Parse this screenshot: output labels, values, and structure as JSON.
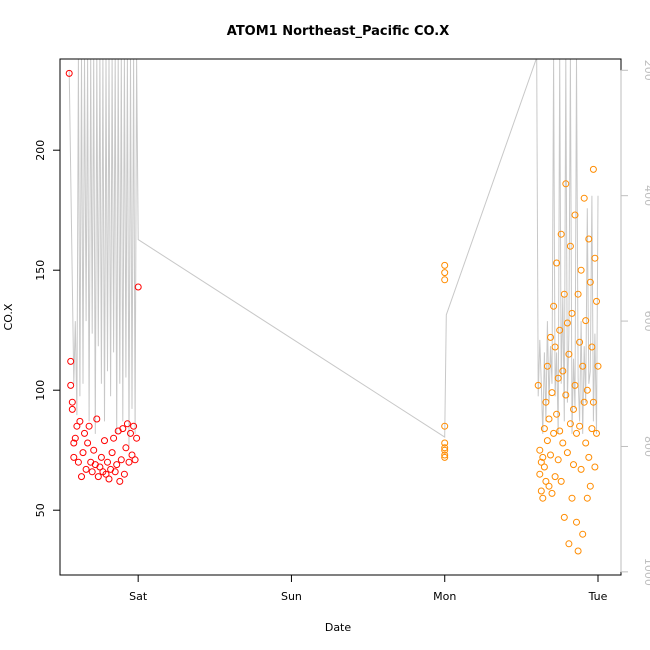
{
  "chart_data": {
    "type": "scatter",
    "title": "ATOM1 Northeast_Pacific CO.X",
    "xlabel": "Date",
    "ylabel": "CO.X",
    "x_tick_labels": [
      "Sat",
      "Sun",
      "Mon",
      "Tue"
    ],
    "x_ticks_day": [
      1,
      2,
      3,
      4
    ],
    "xlim_day": [
      0.49,
      4.15
    ],
    "y_ticks": [
      50,
      100,
      150,
      200
    ],
    "ylim": [
      23,
      238
    ],
    "y2_ticks": [
      200,
      400,
      600,
      800,
      1000
    ],
    "y2lim": [
      1005,
      182
    ],
    "y2_reversed": true,
    "grid": false,
    "colors": {
      "early": "#ff0000",
      "late": "#ff8c00",
      "line": "#c8c8c8"
    },
    "series": [
      {
        "role": "points-early",
        "color": "#ff0000",
        "x_day": [
          0.55,
          0.56,
          0.56,
          0.57,
          0.57,
          0.58,
          0.58,
          0.59,
          0.6,
          0.61,
          0.62,
          0.63,
          0.64,
          0.65,
          0.66,
          0.67,
          0.68,
          0.69,
          0.7,
          0.71,
          0.72,
          0.73,
          0.74,
          0.75,
          0.76,
          0.77,
          0.78,
          0.79,
          0.8,
          0.81,
          0.82,
          0.83,
          0.84,
          0.85,
          0.86,
          0.87,
          0.88,
          0.89,
          0.9,
          0.91,
          0.92,
          0.93,
          0.94,
          0.95,
          0.96,
          0.97,
          0.98,
          0.99,
          1.0
        ],
        "y": [
          232,
          112,
          102,
          95,
          92,
          78,
          72,
          80,
          85,
          70,
          87,
          64,
          74,
          82,
          67,
          78,
          85,
          70,
          66,
          75,
          69,
          88,
          64,
          68,
          72,
          66,
          79,
          65,
          70,
          63,
          67,
          74,
          80,
          66,
          69,
          83,
          62,
          71,
          84,
          65,
          76,
          86,
          70,
          82,
          73,
          85,
          71,
          80,
          143
        ]
      },
      {
        "role": "points-mid",
        "color": "#ff8c00",
        "x_day": [
          3.0,
          3.0,
          3.0,
          3.0,
          3.0,
          3.0,
          3.0,
          3.0,
          3.0
        ],
        "y": [
          152,
          149,
          146,
          85,
          78,
          76,
          75,
          73,
          72
        ]
      },
      {
        "role": "points-late",
        "color": "#ff8c00",
        "x_day": [
          3.61,
          3.62,
          3.62,
          3.63,
          3.63,
          3.64,
          3.64,
          3.65,
          3.65,
          3.66,
          3.66,
          3.67,
          3.67,
          3.68,
          3.68,
          3.69,
          3.69,
          3.7,
          3.7,
          3.71,
          3.71,
          3.72,
          3.72,
          3.73,
          3.73,
          3.74,
          3.74,
          3.75,
          3.75,
          3.76,
          3.76,
          3.77,
          3.77,
          3.78,
          3.78,
          3.79,
          3.79,
          3.8,
          3.8,
          3.81,
          3.81,
          3.82,
          3.82,
          3.83,
          3.83,
          3.84,
          3.84,
          3.85,
          3.85,
          3.86,
          3.86,
          3.87,
          3.87,
          3.88,
          3.88,
          3.89,
          3.89,
          3.9,
          3.9,
          3.91,
          3.91,
          3.92,
          3.92,
          3.93,
          3.93,
          3.94,
          3.94,
          3.95,
          3.95,
          3.96,
          3.96,
          3.97,
          3.97,
          3.98,
          3.98,
          3.99,
          3.99,
          4.0
        ],
        "y": [
          102,
          75,
          65,
          70,
          58,
          72,
          55,
          68,
          84,
          62,
          95,
          79,
          110,
          60,
          88,
          122,
          73,
          99,
          57,
          135,
          82,
          118,
          64,
          153,
          90,
          105,
          71,
          125,
          83,
          165,
          62,
          108,
          78,
          140,
          47,
          186,
          98,
          74,
          128,
          36,
          115,
          86,
          160,
          55,
          132,
          92,
          69,
          173,
          102,
          82,
          45,
          140,
          33,
          120,
          85,
          67,
          150,
          110,
          40,
          95,
          180,
          78,
          129,
          55,
          100,
          163,
          72,
          145,
          60,
          118,
          84,
          192,
          95,
          68,
          155,
          82,
          137,
          110
        ]
      }
    ],
    "line_series": {
      "role": "line-right-axis",
      "color": "#c8c8c8",
      "x_day": [
        0.55,
        0.58,
        0.59,
        0.6,
        0.61,
        0.62,
        0.63,
        0.64,
        0.65,
        0.66,
        0.67,
        0.68,
        0.69,
        0.7,
        0.71,
        0.72,
        0.73,
        0.74,
        0.75,
        0.76,
        0.77,
        0.78,
        0.79,
        0.8,
        0.81,
        0.82,
        0.83,
        0.84,
        0.85,
        0.86,
        0.87,
        0.88,
        0.89,
        0.9,
        0.91,
        0.92,
        0.93,
        0.94,
        0.95,
        0.96,
        0.97,
        0.98,
        0.99,
        1.0,
        3.0,
        3.01,
        3.6,
        3.61,
        3.62,
        3.63,
        3.64,
        3.65,
        3.66,
        3.67,
        3.68,
        3.69,
        3.7,
        3.71,
        3.72,
        3.73,
        3.74,
        3.75,
        3.76,
        3.77,
        3.78,
        3.79,
        3.8,
        3.81,
        3.82,
        3.83,
        3.84,
        3.85,
        3.86,
        3.87,
        3.88,
        3.89,
        3.9,
        3.91,
        3.92,
        3.93,
        3.94,
        3.95,
        3.96,
        3.97,
        3.98,
        3.99,
        4.0
      ],
      "y2": [
        200,
        700,
        600,
        750,
        180,
        720,
        180,
        700,
        180,
        600,
        180,
        760,
        180,
        620,
        180,
        780,
        180,
        640,
        180,
        700,
        180,
        760,
        180,
        680,
        180,
        720,
        180,
        650,
        180,
        780,
        180,
        700,
        180,
        760,
        180,
        690,
        180,
        800,
        180,
        740,
        180,
        780,
        180,
        470,
        785,
        590,
        180,
        720,
        630,
        700,
        780,
        650,
        760,
        600,
        730,
        640,
        700,
        180,
        720,
        650,
        780,
        180,
        700,
        560,
        760,
        180,
        730,
        620,
        180,
        780,
        660,
        740,
        180,
        690,
        760,
        600,
        780,
        640,
        730,
        420,
        700,
        680,
        400,
        760,
        620,
        780,
        400
      ]
    }
  }
}
